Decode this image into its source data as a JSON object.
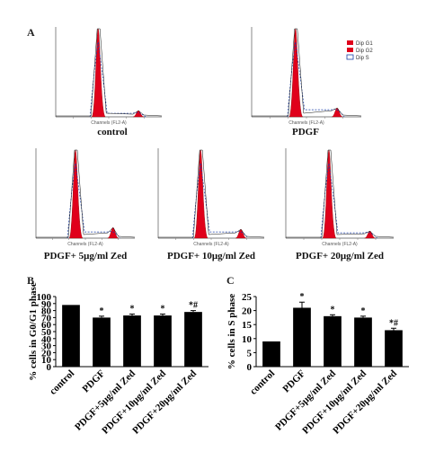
{
  "panel_labels": {
    "a": "A",
    "b": "B",
    "c": "C"
  },
  "legend": [
    "Dip G1",
    "Dip G2",
    "Dip S"
  ],
  "histogram_axis_label": "Channels (FL2-A)",
  "chart_data": [
    {
      "type": "histogram",
      "panels": [
        {
          "caption": "control",
          "g1_peak": 1.0,
          "g2_peak": 0.07,
          "s_level": 0.04
        },
        {
          "caption": "PDGF",
          "g1_peak": 1.0,
          "g2_peak": 0.1,
          "s_level": 0.08
        },
        {
          "caption": "PDGF+ 5μg/ml Zed",
          "g1_peak": 1.0,
          "g2_peak": 0.12,
          "s_level": 0.07
        },
        {
          "caption": "PDGF+ 10μg/ml Zed",
          "g1_peak": 1.0,
          "g2_peak": 0.1,
          "s_level": 0.07
        },
        {
          "caption": "PDGF+ 20μg/ml Zed",
          "g1_peak": 1.0,
          "g2_peak": 0.08,
          "s_level": 0.06
        }
      ]
    },
    {
      "type": "bar",
      "ylabel": "% cells in G0/G1 phase",
      "ylim": [
        0,
        100
      ],
      "yticks": [
        0,
        10,
        20,
        30,
        40,
        50,
        60,
        70,
        80,
        90,
        100
      ],
      "categories": [
        "control",
        "PDGF",
        "PDGF+5μg/ml Zed",
        "PDGF+10μg/ml Zed",
        "PDGF+20μg/ml Zed"
      ],
      "values": [
        88,
        70,
        73,
        73,
        78
      ],
      "errors": [
        0,
        2,
        2,
        2,
        2
      ],
      "annotations": [
        "",
        "*",
        "*",
        "*",
        "*#"
      ]
    },
    {
      "type": "bar",
      "ylabel": "% cells in S phase",
      "ylim": [
        0,
        25
      ],
      "yticks": [
        0,
        5,
        10,
        15,
        20,
        25
      ],
      "categories": [
        "control",
        "PDGF",
        "PDGF+5μg/ml Zed",
        "PDGF+10μg/ml Zed",
        "PDGF+20μg/ml Zed"
      ],
      "values": [
        9,
        21,
        18,
        17.5,
        13
      ],
      "errors": [
        0,
        2,
        0.5,
        0.5,
        0.7
      ],
      "annotations": [
        "",
        "*",
        "*",
        "*",
        "*#"
      ]
    }
  ]
}
